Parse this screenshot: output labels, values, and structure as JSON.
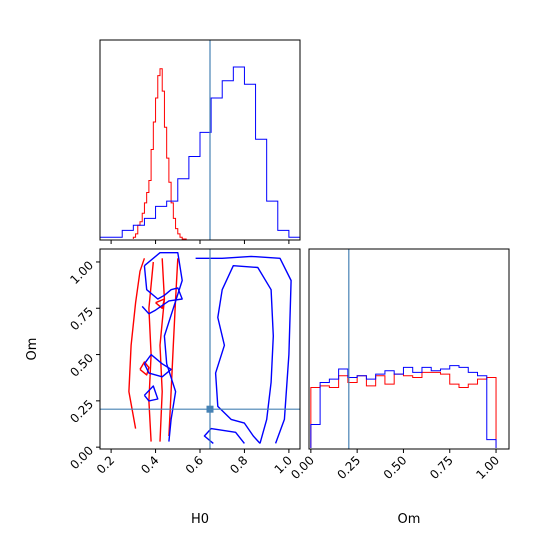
{
  "chart_data": {
    "type": "corner",
    "parameters": [
      "H0",
      "Om"
    ],
    "axes": {
      "H0": {
        "label": "H0",
        "range": [
          0.15,
          1.05
        ],
        "ticks": [
          "0.2",
          "0.4",
          "0.6",
          "0.8",
          "1.0"
        ]
      },
      "Om": {
        "label": "Om",
        "range": [
          -0.01,
          1.07
        ],
        "ticks": [
          "0.00",
          "0.25",
          "0.50",
          "0.75",
          "1.00"
        ]
      }
    },
    "truths": {
      "H0": 0.645,
      "Om": 0.205
    },
    "colors": {
      "series_red": "#ff0000",
      "series_blue": "#0000ff",
      "truth": "#4682b4"
    },
    "series": [
      {
        "color": "#ff0000",
        "H0_hist": {
          "edges": [
            0.3,
            0.31,
            0.32,
            0.33,
            0.34,
            0.35,
            0.36,
            0.37,
            0.38,
            0.39,
            0.4,
            0.41,
            0.42,
            0.43,
            0.44,
            0.45,
            0.46,
            0.47,
            0.48,
            0.49,
            0.5,
            0.51,
            0.52,
            0.53,
            0.54
          ],
          "heights": [
            0.01,
            0.03,
            0.08,
            0.1,
            0.15,
            0.21,
            0.27,
            0.34,
            0.52,
            0.68,
            0.82,
            0.95,
            0.99,
            0.86,
            0.65,
            0.47,
            0.33,
            0.21,
            0.12,
            0.06,
            0.03,
            0.01,
            0.0,
            0.0
          ]
        },
        "Om_hist": {
          "edges": [
            0.0,
            0.05,
            0.1,
            0.15,
            0.2,
            0.25,
            0.3,
            0.35,
            0.4,
            0.45,
            0.5,
            0.55,
            0.6,
            0.65,
            0.7,
            0.75,
            0.8,
            0.85,
            0.9,
            0.95,
            1.0
          ],
          "heights": [
            0.36,
            0.37,
            0.36,
            0.43,
            0.39,
            0.43,
            0.37,
            0.43,
            0.38,
            0.44,
            0.43,
            0.42,
            0.45,
            0.45,
            0.44,
            0.38,
            0.36,
            0.38,
            0.41,
            0.42
          ]
        },
        "contours": [
          [
            [
              0.31,
              0.1
            ],
            [
              0.28,
              0.3
            ],
            [
              0.29,
              0.55
            ],
            [
              0.31,
              0.78
            ],
            [
              0.33,
              0.95
            ],
            [
              0.35,
              1.02
            ]
          ],
          [
            [
              0.38,
              0.03
            ],
            [
              0.37,
              0.25
            ],
            [
              0.38,
              0.5
            ],
            [
              0.37,
              0.75
            ],
            [
              0.39,
              1.0
            ]
          ],
          [
            [
              0.42,
              0.03
            ],
            [
              0.43,
              0.3
            ],
            [
              0.42,
              0.55
            ],
            [
              0.44,
              0.8
            ],
            [
              0.43,
              1.02
            ]
          ],
          [
            [
              0.46,
              0.06
            ],
            [
              0.47,
              0.3
            ],
            [
              0.48,
              0.55
            ],
            [
              0.49,
              0.8
            ],
            [
              0.5,
              1.02
            ]
          ],
          [
            [
              0.33,
              0.42
            ],
            [
              0.35,
              0.46
            ],
            [
              0.37,
              0.43
            ],
            [
              0.36,
              0.39
            ],
            [
              0.33,
              0.42
            ]
          ],
          [
            [
              0.4,
              0.78
            ],
            [
              0.44,
              0.8
            ],
            [
              0.43,
              0.75
            ],
            [
              0.4,
              0.78
            ]
          ]
        ]
      },
      {
        "color": "#0000ff",
        "H0_hist": {
          "edges": [
            0.15,
            0.2,
            0.25,
            0.3,
            0.35,
            0.4,
            0.45,
            0.5,
            0.55,
            0.6,
            0.65,
            0.7,
            0.75,
            0.8,
            0.85,
            0.9,
            0.95,
            1.0,
            1.05
          ],
          "heights": [
            0.01,
            0.01,
            0.05,
            0.08,
            0.12,
            0.19,
            0.22,
            0.35,
            0.48,
            0.62,
            0.82,
            0.92,
            1.0,
            0.9,
            0.58,
            0.22,
            0.05,
            0.01
          ]
        },
        "Om_hist": {
          "edges": [
            0.0,
            0.05,
            0.1,
            0.15,
            0.2,
            0.25,
            0.3,
            0.35,
            0.4,
            0.45,
            0.5,
            0.55,
            0.6,
            0.65,
            0.7,
            0.75,
            0.8,
            0.85,
            0.9,
            0.95,
            1.0
          ],
          "heights": [
            0.14,
            0.39,
            0.41,
            0.47,
            0.42,
            0.43,
            0.41,
            0.44,
            0.46,
            0.44,
            0.48,
            0.45,
            0.48,
            0.46,
            0.47,
            0.49,
            0.48,
            0.45,
            0.43,
            0.05
          ]
        },
        "contours": [
          [
            [
              0.58,
              1.02
            ],
            [
              0.7,
              1.02
            ],
            [
              0.83,
              1.03
            ],
            [
              0.96,
              1.02
            ],
            [
              1.01,
              0.9
            ],
            [
              1.0,
              0.5
            ],
            [
              0.98,
              0.15
            ],
            [
              0.94,
              0.02
            ]
          ],
          [
            [
              0.8,
              0.02
            ],
            [
              0.76,
              0.08
            ],
            [
              0.65,
              0.1
            ],
            [
              0.62,
              0.06
            ],
            [
              0.66,
              0.02
            ]
          ],
          [
            [
              0.87,
              0.02
            ],
            [
              0.9,
              0.15
            ],
            [
              0.92,
              0.35
            ],
            [
              0.93,
              0.6
            ],
            [
              0.92,
              0.85
            ],
            [
              0.86,
              0.97
            ],
            [
              0.75,
              0.98
            ],
            [
              0.7,
              0.85
            ],
            [
              0.68,
              0.7
            ],
            [
              0.71,
              0.55
            ],
            [
              0.67,
              0.4
            ],
            [
              0.68,
              0.22
            ],
            [
              0.74,
              0.15
            ],
            [
              0.8,
              0.13
            ],
            [
              0.84,
              0.06
            ],
            [
              0.87,
              0.02
            ]
          ],
          [
            [
              0.35,
              0.98
            ],
            [
              0.42,
              1.05
            ],
            [
              0.5,
              1.05
            ],
            [
              0.52,
              0.9
            ],
            [
              0.48,
              0.75
            ],
            [
              0.44,
              0.6
            ],
            [
              0.45,
              0.45
            ],
            [
              0.49,
              0.3
            ],
            [
              0.47,
              0.15
            ],
            [
              0.46,
              0.03
            ]
          ],
          [
            [
              0.35,
              0.98
            ],
            [
              0.36,
              0.85
            ],
            [
              0.41,
              0.8
            ],
            [
              0.44,
              0.82
            ],
            [
              0.47,
              0.85
            ],
            [
              0.5,
              0.86
            ],
            [
              0.52,
              0.8
            ],
            [
              0.46,
              0.79
            ],
            [
              0.4,
              0.74
            ],
            [
              0.37,
              0.72
            ],
            [
              0.34,
              0.76
            ]
          ],
          [
            [
              0.35,
              0.45
            ],
            [
              0.37,
              0.4
            ],
            [
              0.43,
              0.38
            ],
            [
              0.47,
              0.42
            ],
            [
              0.43,
              0.45
            ],
            [
              0.38,
              0.5
            ],
            [
              0.35,
              0.45
            ]
          ],
          [
            [
              0.35,
              0.28
            ],
            [
              0.37,
              0.25
            ],
            [
              0.41,
              0.26
            ],
            [
              0.39,
              0.33
            ],
            [
              0.35,
              0.28
            ]
          ]
        ]
      }
    ]
  }
}
